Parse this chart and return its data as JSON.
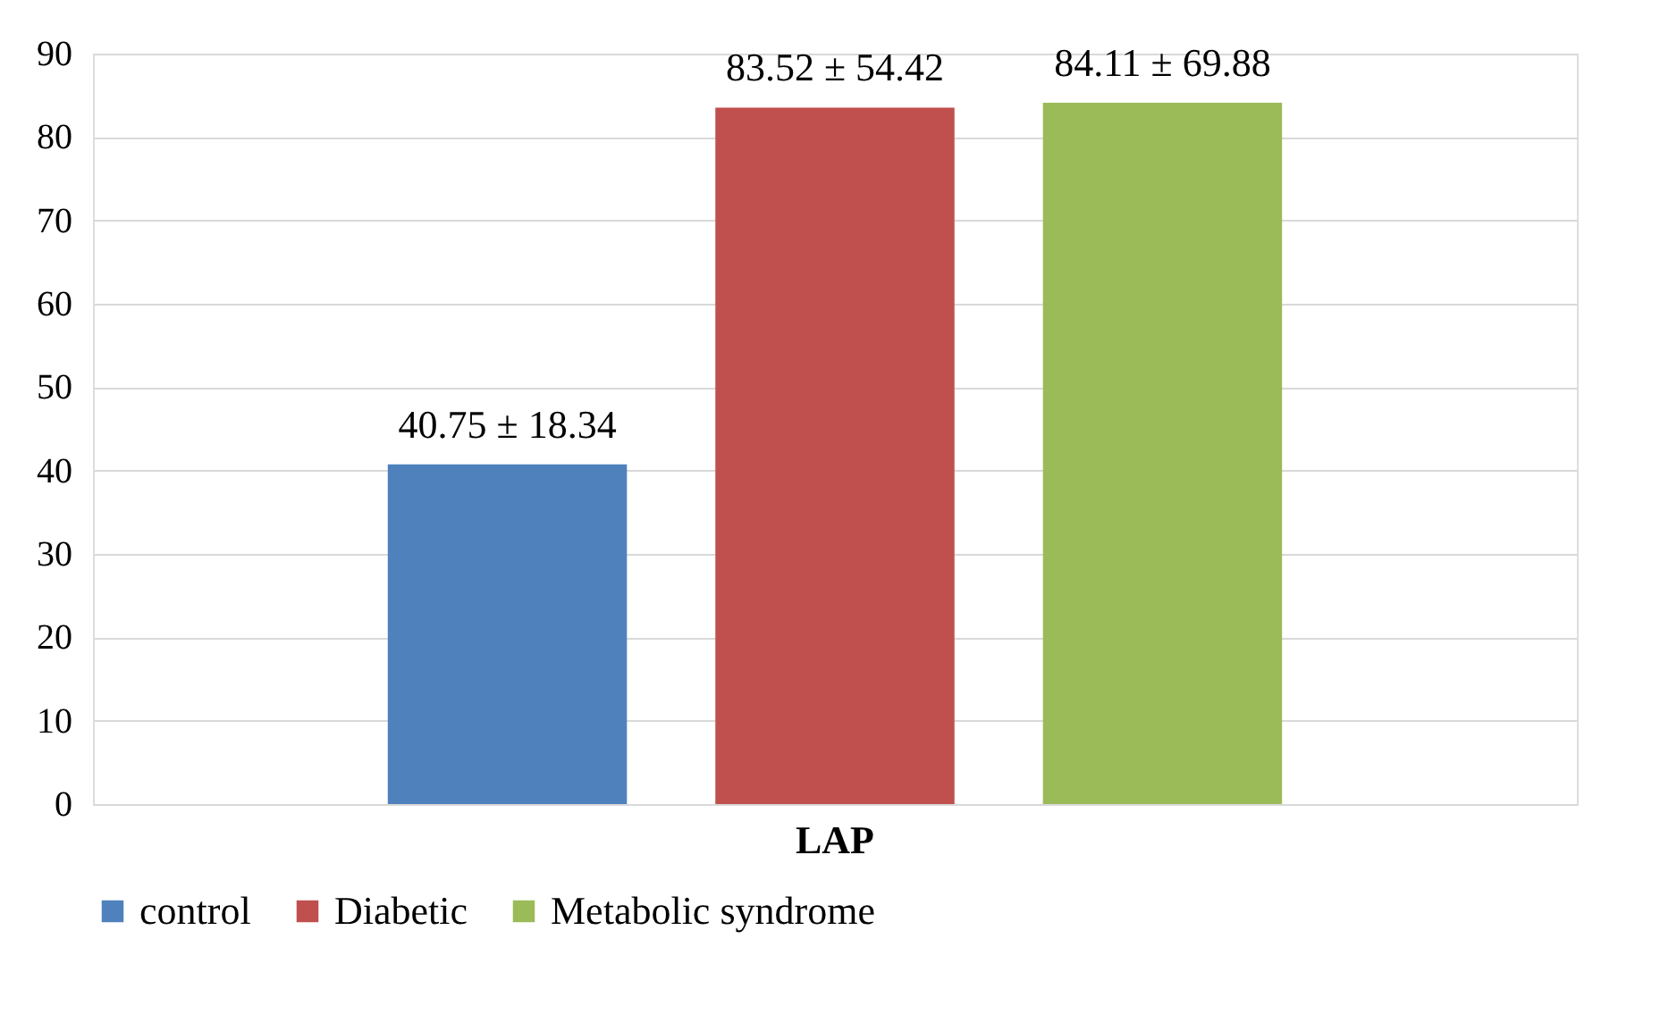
{
  "chart_data": {
    "type": "bar",
    "categories": [
      "LAP"
    ],
    "series": [
      {
        "name": "control",
        "color": "#4f81bd",
        "values": [
          40.75
        ],
        "value_labels": [
          "40.75 ± 18.34"
        ]
      },
      {
        "name": "Diabetic",
        "color": "#c0504d",
        "values": [
          83.52
        ],
        "value_labels": [
          "83.52 ± 54.42"
        ]
      },
      {
        "name": "Metabolic syndrome",
        "color": "#9bbb59",
        "values": [
          84.11
        ],
        "value_labels": [
          "84.11  ± 69.88"
        ]
      }
    ],
    "ylim": [
      0,
      90
    ],
    "yticks": [
      0,
      10,
      20,
      30,
      40,
      50,
      60,
      70,
      80,
      90
    ],
    "grid": "y",
    "legend": "bottom"
  }
}
